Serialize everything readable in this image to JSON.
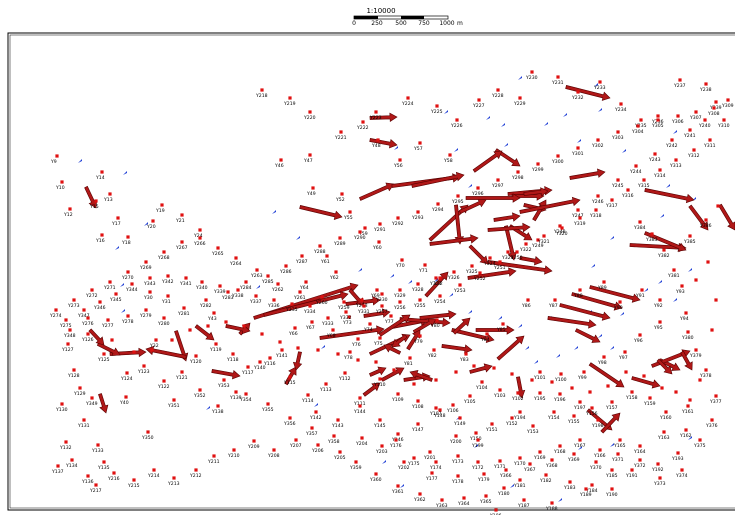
{
  "scale_bar": {
    "title": "1:10000",
    "ticks": [
      "0",
      "250",
      "500",
      "750",
      "1000"
    ],
    "unit": "m"
  },
  "colors": {
    "point": "#e01010",
    "vector_fill": "#b01818",
    "vector_stroke": "#5a0000",
    "station": "#1f3fd6",
    "frame": "#000000"
  },
  "point_labels": [
    "Y9",
    "Y10",
    "Y12",
    "Y14",
    "Y13",
    "Y15",
    "Y16",
    "Y17",
    "Y18",
    "Y19",
    "Y20",
    "Y21",
    "Y24",
    "Y30",
    "Y31",
    "Y32",
    "Y40",
    "Y43",
    "Y46",
    "Y47",
    "Y48",
    "Y49",
    "Y52",
    "Y55",
    "Y56",
    "Y57",
    "Y58",
    "Y59",
    "Y60",
    "Y61",
    "Y62",
    "Y64",
    "Y66",
    "Y67",
    "Y68",
    "Y69",
    "Y70",
    "Y71",
    "Y72",
    "Y73",
    "Y74",
    "Y75",
    "Y76",
    "Y77",
    "Y78",
    "Y79",
    "Y80",
    "Y81",
    "Y82",
    "Y83",
    "Y84",
    "Y85",
    "Y86",
    "Y87",
    "Y88",
    "Y89",
    "Y90",
    "Y91",
    "Y92",
    "Y93",
    "Y94",
    "Y95",
    "Y96",
    "Y97",
    "Y98",
    "Y99",
    "Y100",
    "Y101",
    "Y102",
    "Y103",
    "Y104",
    "Y105",
    "Y106",
    "Y107",
    "Y108",
    "Y109",
    "Y110",
    "Y111",
    "Y112",
    "Y113",
    "Y114",
    "Y115",
    "Y116",
    "Y117",
    "Y118",
    "Y119",
    "Y120",
    "Y121",
    "Y122",
    "Y123",
    "Y124",
    "Y125",
    "Y126",
    "Y127",
    "Y128",
    "Y129",
    "Y130",
    "Y131",
    "Y132",
    "Y133",
    "Y134",
    "Y135",
    "Y136",
    "Y137",
    "Y138",
    "Y139",
    "Y140",
    "Y141",
    "Y142",
    "Y143",
    "Y144",
    "Y145",
    "Y146",
    "Y147",
    "Y148",
    "Y149",
    "Y150",
    "Y151",
    "Y152",
    "Y153",
    "Y154",
    "Y155",
    "Y156",
    "Y157",
    "Y158",
    "Y159",
    "Y160",
    "Y161",
    "Y162",
    "Y163",
    "Y164",
    "Y165",
    "Y166",
    "Y167",
    "Y168",
    "Y169",
    "Y170",
    "Y171",
    "Y172",
    "Y173",
    "Y174",
    "Y175",
    "Y176",
    "Y177",
    "Y178",
    "Y179",
    "Y180",
    "Y181",
    "Y182",
    "Y183",
    "Y184",
    "Y185",
    "Y186",
    "Y187",
    "Y188",
    "Y189",
    "Y190",
    "Y191",
    "Y192",
    "Y193",
    "Y194",
    "Y195",
    "Y196",
    "Y197",
    "Y198",
    "Y199",
    "Y200",
    "Y201",
    "Y202",
    "Y203",
    "Y204",
    "Y205",
    "Y206",
    "Y207",
    "Y208",
    "Y209",
    "Y210",
    "Y211",
    "Y212",
    "Y213",
    "Y214",
    "Y215",
    "Y216",
    "Y217",
    "Y218",
    "Y219",
    "Y220",
    "Y221",
    "Y222",
    "Y223",
    "Y224",
    "Y225",
    "Y226",
    "Y227",
    "Y228",
    "Y229",
    "Y230",
    "Y231",
    "Y232",
    "Y233",
    "Y234",
    "Y235",
    "Y236",
    "Y237",
    "Y238",
    "Y239",
    "Y240",
    "Y241",
    "Y242",
    "Y243",
    "Y244",
    "Y245",
    "Y246",
    "Y247",
    "Y248",
    "Y249",
    "Y250",
    "Y251",
    "Y252",
    "Y253",
    "Y254",
    "Y255",
    "Y256",
    "Y257",
    "Y258",
    "Y259",
    "Y260",
    "Y261",
    "Y262",
    "Y263",
    "Y264",
    "Y265",
    "Y266",
    "Y267",
    "Y268",
    "Y269",
    "Y270",
    "Y271",
    "Y272",
    "Y273",
    "Y274",
    "Y275",
    "Y276",
    "Y277",
    "Y278",
    "Y279",
    "Y280",
    "Y281",
    "Y282",
    "Y283",
    "Y284",
    "Y285",
    "Y286",
    "Y287",
    "Y288",
    "Y289",
    "Y290",
    "Y291",
    "Y292",
    "Y293",
    "Y294",
    "Y295",
    "Y296",
    "Y297",
    "Y298",
    "Y299",
    "Y300",
    "Y301",
    "Y302",
    "Y303",
    "Y304",
    "Y305",
    "Y306",
    "Y307",
    "Y308",
    "Y309",
    "Y310",
    "Y311",
    "Y312",
    "Y313",
    "Y314",
    "Y315",
    "Y316",
    "Y317",
    "Y318",
    "Y319",
    "Y320",
    "Y321",
    "Y322",
    "Y323",
    "Y324",
    "Y325",
    "Y326",
    "Y327",
    "Y328",
    "Y329",
    "Y330",
    "Y331",
    "Y332",
    "Y333",
    "Y334",
    "Y335",
    "Y336",
    "Y337",
    "Y338",
    "Y339",
    "Y340",
    "Y341",
    "Y342",
    "Y343",
    "Y344",
    "Y345",
    "Y346",
    "Y347",
    "Y348",
    "Y349",
    "Y350",
    "Y351",
    "Y352",
    "Y353",
    "Y354",
    "Y355",
    "Y356",
    "Y357",
    "Y358",
    "Y359",
    "Y360",
    "Y361",
    "Y362",
    "Y363",
    "Y364",
    "Y365",
    "Y366",
    "Y367",
    "Y368",
    "Y369",
    "Y370",
    "Y371",
    "Y372",
    "Y373",
    "Y374",
    "Y375",
    "Y376",
    "Y377",
    "Y378",
    "Y379",
    "Y380",
    "Y381",
    "Y382",
    "Y383",
    "Y384",
    "Y385",
    "Y386"
  ]
}
